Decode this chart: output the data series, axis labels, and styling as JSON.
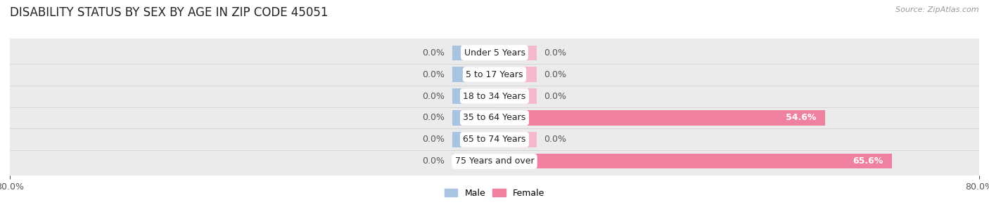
{
  "title": "DISABILITY STATUS BY SEX BY AGE IN ZIP CODE 45051",
  "source": "Source: ZipAtlas.com",
  "categories": [
    "Under 5 Years",
    "5 to 17 Years",
    "18 to 34 Years",
    "35 to 64 Years",
    "65 to 74 Years",
    "75 Years and over"
  ],
  "male_values": [
    0.0,
    0.0,
    0.0,
    0.0,
    0.0,
    0.0
  ],
  "female_values": [
    0.0,
    0.0,
    0.0,
    54.6,
    0.0,
    65.6
  ],
  "male_color": "#a8c4e0",
  "female_color": "#f080a0",
  "female_stub_color": "#f4b8cc",
  "male_label": "Male",
  "female_label": "Female",
  "xlim": 80.0,
  "background_color": "#ffffff",
  "row_bg_color": "#ebebeb",
  "title_fontsize": 12,
  "label_fontsize": 9,
  "tick_fontsize": 9,
  "source_fontsize": 8,
  "stub_size": 7.0,
  "value_label_color": "#555555",
  "cat_label_fontsize": 9
}
